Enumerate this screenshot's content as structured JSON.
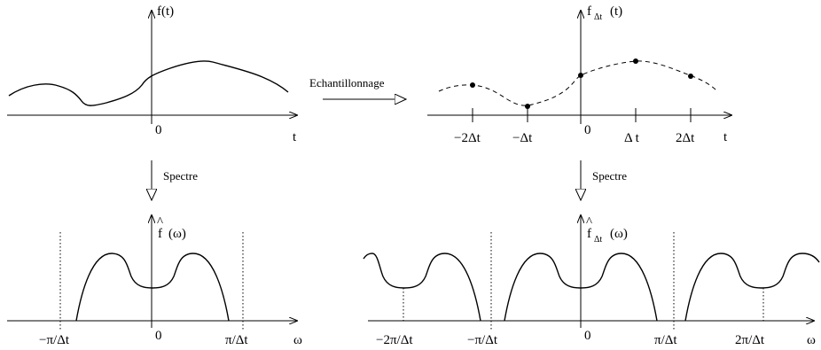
{
  "top_left": {
    "ylabel": "f(t)",
    "origin": "0",
    "xlabel": "t"
  },
  "top_right": {
    "ylabel_main": "f",
    "ylabel_sub": "Δt",
    "ylabel_arg": "(t)",
    "origin": "0",
    "xlabel": "t",
    "ticks": [
      "−2Δt",
      "−Δt",
      "Δ t",
      "2Δt"
    ]
  },
  "sampling_arrow_label": "Echantillonnage",
  "spectrum_arrow_left": "Spectre",
  "spectrum_arrow_right": "Spectre",
  "bottom_left": {
    "ylabel_hat": "^",
    "ylabel_main": "f",
    "ylabel_arg": "(ω)",
    "origin": "0",
    "xlabel": "ω",
    "ticks": [
      "−π/Δt",
      "π/Δt"
    ]
  },
  "bottom_right": {
    "ylabel_hat": "^",
    "ylabel_main": "f",
    "ylabel_sub": "Δt",
    "ylabel_arg": "(ω)",
    "origin": "0",
    "xlabel": "ω",
    "ticks": [
      "−2π/Δt",
      "−π/Δt",
      "π/Δt",
      "2π/Δt"
    ]
  }
}
